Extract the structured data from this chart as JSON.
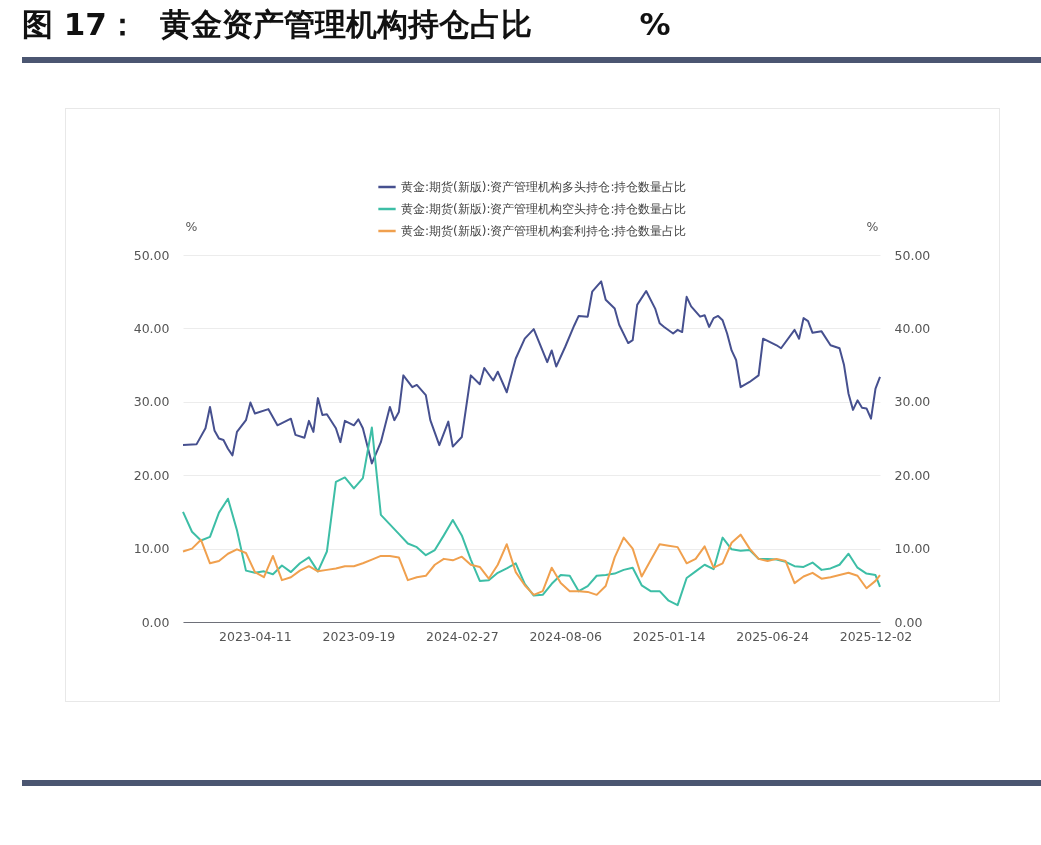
{
  "chart_data": {
    "type": "line",
    "title": "图 17：  黄金资产管理机构持仓占比          %",
    "ylabel": "%",
    "y2label": "%",
    "xlim": [
      "2022-12-20",
      "2025-12-09"
    ],
    "xticks": [
      "2023-04-11",
      "2023-09-19",
      "2024-02-27",
      "2024-08-06",
      "2025-01-14",
      "2025-06-24",
      "2025-12-02"
    ],
    "ylim": [
      0,
      50
    ],
    "yticks": [
      {
        "value": 0,
        "label": "0.00"
      },
      {
        "value": 10,
        "label": "10.00"
      },
      {
        "value": 20,
        "label": "20.00"
      },
      {
        "value": 30,
        "label": "30.00"
      },
      {
        "value": 40,
        "label": "40.00"
      },
      {
        "value": 50,
        "label": "50.00"
      }
    ],
    "y2lim": [
      0,
      50
    ],
    "y2ticks": [
      {
        "value": 0,
        "label": "0.00"
      },
      {
        "value": 10,
        "label": "10.00"
      },
      {
        "value": 20,
        "label": "20.00"
      },
      {
        "value": 30,
        "label": "30.00"
      },
      {
        "value": 40,
        "label": "40.00"
      },
      {
        "value": 50,
        "label": "50.00"
      }
    ],
    "grid": "y",
    "legend": "top",
    "line_style": "solid",
    "marker": "none",
    "series": [
      {
        "name": "黄金:期货(新版):资产管理机构多头持仓:持仓数量占比",
        "color": "#46508f",
        "x": [
          "2022-12-20",
          "2023-01-10",
          "2023-01-24",
          "2023-01-31",
          "2023-02-07",
          "2023-02-14",
          "2023-02-21",
          "2023-02-28",
          "2023-03-07",
          "2023-03-14",
          "2023-03-28",
          "2023-04-04",
          "2023-04-11",
          "2023-05-02",
          "2023-05-16",
          "2023-06-06",
          "2023-06-13",
          "2023-06-27",
          "2023-07-04",
          "2023-07-11",
          "2023-07-18",
          "2023-07-25",
          "2023-08-01",
          "2023-08-15",
          "2023-08-22",
          "2023-08-29",
          "2023-09-12",
          "2023-09-19",
          "2023-09-26",
          "2023-10-10",
          "2023-10-24",
          "2023-11-07",
          "2023-11-14",
          "2023-11-21",
          "2023-11-28",
          "2023-12-12",
          "2023-12-19",
          "2024-01-02",
          "2024-01-09",
          "2024-01-23",
          "2024-02-06",
          "2024-02-13",
          "2024-02-27",
          "2024-03-12",
          "2024-03-26",
          "2024-04-02",
          "2024-04-16",
          "2024-04-23",
          "2024-05-07",
          "2024-05-21",
          "2024-06-04",
          "2024-06-18",
          "2024-07-09",
          "2024-07-16",
          "2024-07-23",
          "2024-08-06",
          "2024-08-20",
          "2024-08-27",
          "2024-09-10",
          "2024-09-17",
          "2024-10-01",
          "2024-10-08",
          "2024-10-22",
          "2024-10-29",
          "2024-11-12",
          "2024-11-19",
          "2024-11-26",
          "2024-12-10",
          "2024-12-24",
          "2024-12-31",
          "2025-01-07",
          "2025-01-21",
          "2025-01-28",
          "2025-02-04",
          "2025-02-11",
          "2025-02-18",
          "2025-03-04",
          "2025-03-11",
          "2025-03-18",
          "2025-03-25",
          "2025-04-01",
          "2025-04-08",
          "2025-04-15",
          "2025-04-22",
          "2025-04-29",
          "2025-05-06",
          "2025-05-20",
          "2025-06-03",
          "2025-06-10",
          "2025-07-01",
          "2025-07-08",
          "2025-07-29",
          "2025-08-05",
          "2025-08-12",
          "2025-08-19",
          "2025-08-26",
          "2025-09-09",
          "2025-09-23",
          "2025-10-07",
          "2025-10-14",
          "2025-10-21",
          "2025-10-28",
          "2025-11-04",
          "2025-11-11",
          "2025-11-18",
          "2025-11-25",
          "2025-12-02",
          "2025-12-09"
        ],
        "values": [
          24.1,
          24.2,
          26.4,
          29.3,
          26.1,
          25,
          24.8,
          23.6,
          22.7,
          25.9,
          27.5,
          29.9,
          28.4,
          29,
          26.8,
          27.7,
          25.5,
          25.1,
          27.4,
          25.9,
          30.5,
          28.2,
          28.3,
          26.4,
          24.5,
          27.4,
          26.8,
          27.6,
          26.4,
          21.6,
          24.5,
          29.3,
          27.5,
          28.6,
          33.6,
          32,
          32.3,
          30.9,
          27.5,
          24.1,
          27.3,
          23.9,
          25.2,
          33.6,
          32.4,
          34.6,
          32.9,
          34.1,
          31.3,
          35.9,
          38.6,
          39.9,
          35.4,
          37,
          34.8,
          37.5,
          40.4,
          41.7,
          41.6,
          45,
          46.4,
          43.9,
          42.7,
          40.5,
          38,
          38.4,
          43.2,
          45.1,
          42.7,
          40.7,
          40.2,
          39.3,
          39.8,
          39.5,
          44.3,
          43,
          41.6,
          41.8,
          40.2,
          41.4,
          41.7,
          41.1,
          39.3,
          37,
          35.7,
          32,
          32.7,
          33.6,
          38.6,
          37.7,
          37.3,
          39.8,
          38.6,
          41.4,
          41,
          39.4,
          39.6,
          37.7,
          37.3,
          35,
          31.1,
          28.9,
          30.2,
          29.2,
          29.1,
          27.7,
          31.8,
          33.4
        ]
      },
      {
        "name": "黄金:期货(新版):资产管理机构空头持仓:持仓数量占比",
        "color": "#3dbea6",
        "x": [
          "2022-12-20",
          "2023-01-03",
          "2023-01-17",
          "2023-01-31",
          "2023-02-14",
          "2023-02-28",
          "2023-03-14",
          "2023-03-28",
          "2023-04-11",
          "2023-04-25",
          "2023-05-09",
          "2023-05-23",
          "2023-06-06",
          "2023-06-20",
          "2023-07-04",
          "2023-07-18",
          "2023-08-01",
          "2023-08-15",
          "2023-08-29",
          "2023-09-12",
          "2023-09-26",
          "2023-10-10",
          "2023-10-24",
          "2023-11-07",
          "2023-11-21",
          "2023-12-05",
          "2023-12-19",
          "2024-01-02",
          "2024-01-16",
          "2024-01-30",
          "2024-02-13",
          "2024-02-27",
          "2024-03-12",
          "2024-03-26",
          "2024-04-09",
          "2024-04-23",
          "2024-05-07",
          "2024-05-21",
          "2024-06-04",
          "2024-06-18",
          "2024-07-02",
          "2024-07-16",
          "2024-07-30",
          "2024-08-13",
          "2024-08-27",
          "2024-09-10",
          "2024-09-24",
          "2024-10-08",
          "2024-10-22",
          "2024-11-05",
          "2024-11-19",
          "2024-12-03",
          "2024-12-17",
          "2024-12-31",
          "2025-01-14",
          "2025-01-28",
          "2025-02-11",
          "2025-02-25",
          "2025-03-11",
          "2025-03-25",
          "2025-04-08",
          "2025-04-22",
          "2025-05-06",
          "2025-05-20",
          "2025-06-03",
          "2025-06-17",
          "2025-07-01",
          "2025-07-15",
          "2025-07-29",
          "2025-08-12",
          "2025-08-26",
          "2025-09-09",
          "2025-09-23",
          "2025-10-07",
          "2025-10-21",
          "2025-11-04",
          "2025-11-18",
          "2025-12-02",
          "2025-12-09"
        ],
        "values": [
          15,
          12.3,
          11.1,
          11.6,
          14.9,
          16.8,
          12.5,
          7,
          6.7,
          6.9,
          6.5,
          7.7,
          6.8,
          8,
          8.8,
          6.9,
          9.6,
          19.1,
          19.7,
          18.2,
          19.6,
          26.5,
          14.6,
          13.3,
          12,
          10.7,
          10.2,
          9.1,
          9.8,
          11.8,
          13.9,
          11.8,
          8.5,
          5.6,
          5.7,
          6.7,
          7.3,
          8,
          5.2,
          3.6,
          3.7,
          5.2,
          6.4,
          6.3,
          4.2,
          4.9,
          6.3,
          6.4,
          6.6,
          7.1,
          7.4,
          5,
          4.2,
          4.2,
          2.9,
          2.3,
          6,
          6.9,
          7.8,
          7.2,
          11.5,
          9.9,
          9.7,
          9.8,
          8.6,
          8.6,
          8.5,
          8.2,
          7.6,
          7.5,
          8.1,
          7.1,
          7.3,
          7.8,
          9.3,
          7.4,
          6.6,
          6.4,
          4.8
        ]
      },
      {
        "name": "黄金:期货(新版):资产管理机构套利持仓:持仓数量占比",
        "color": "#f0a04e",
        "x": [
          "2022-12-20",
          "2023-01-03",
          "2023-01-17",
          "2023-01-31",
          "2023-02-14",
          "2023-02-28",
          "2023-03-14",
          "2023-03-28",
          "2023-04-11",
          "2023-04-25",
          "2023-05-09",
          "2023-05-23",
          "2023-06-06",
          "2023-06-20",
          "2023-07-04",
          "2023-07-18",
          "2023-08-01",
          "2023-08-15",
          "2023-08-29",
          "2023-09-12",
          "2023-09-26",
          "2023-10-10",
          "2023-10-24",
          "2023-11-07",
          "2023-11-21",
          "2023-12-05",
          "2023-12-19",
          "2024-01-02",
          "2024-01-16",
          "2024-01-30",
          "2024-02-13",
          "2024-02-27",
          "2024-03-12",
          "2024-03-26",
          "2024-04-09",
          "2024-04-23",
          "2024-05-07",
          "2024-05-21",
          "2024-06-04",
          "2024-06-18",
          "2024-07-02",
          "2024-07-16",
          "2024-07-30",
          "2024-08-13",
          "2024-08-27",
          "2024-09-10",
          "2024-09-24",
          "2024-10-08",
          "2024-10-22",
          "2024-11-05",
          "2024-11-19",
          "2024-12-03",
          "2024-12-17",
          "2024-12-31",
          "2025-01-14",
          "2025-01-28",
          "2025-02-11",
          "2025-02-25",
          "2025-03-11",
          "2025-03-25",
          "2025-04-08",
          "2025-04-22",
          "2025-05-06",
          "2025-05-20",
          "2025-06-03",
          "2025-06-17",
          "2025-07-01",
          "2025-07-15",
          "2025-07-29",
          "2025-08-12",
          "2025-08-26",
          "2025-09-09",
          "2025-09-23",
          "2025-10-07",
          "2025-10-21",
          "2025-11-04",
          "2025-11-18",
          "2025-12-02",
          "2025-12-09"
        ],
        "values": [
          9.6,
          10,
          11.2,
          8,
          8.3,
          9.3,
          9.9,
          9.4,
          6.8,
          6.1,
          9,
          5.7,
          6.1,
          7,
          7.6,
          6.9,
          7.1,
          7.3,
          7.6,
          7.6,
          8,
          8.5,
          9,
          9,
          8.8,
          5.7,
          6.1,
          6.3,
          7.8,
          8.6,
          8.4,
          8.9,
          7.8,
          7.5,
          5.9,
          7.8,
          10.6,
          6.8,
          5,
          3.7,
          4.2,
          7.4,
          5.3,
          4.2,
          4.2,
          4.1,
          3.7,
          4.9,
          8.8,
          11.5,
          10,
          6.2,
          8.4,
          10.6,
          10.4,
          10.2,
          8,
          8.6,
          10.3,
          7.4,
          8,
          10.8,
          11.9,
          10,
          8.6,
          8.3,
          8.6,
          8.3,
          5.3,
          6.2,
          6.7,
          5.9,
          6.1,
          6.4,
          6.7,
          6.3,
          4.6,
          5.6,
          6.4
        ]
      }
    ]
  }
}
